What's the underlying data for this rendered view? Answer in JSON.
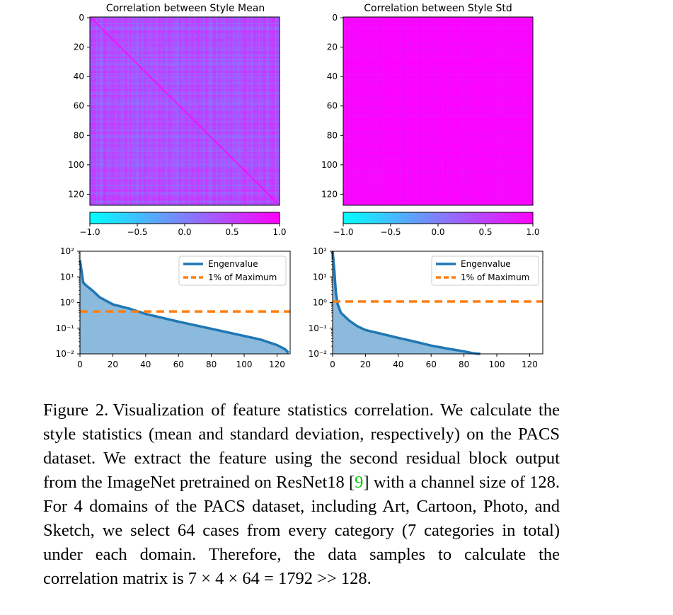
{
  "chart_data": [
    {
      "type": "heatmap",
      "title": "Correlation between Style Mean",
      "matrix_size": 128,
      "value_range": [
        -1.0,
        1.0
      ],
      "colormap": "cool",
      "yticks": [
        0,
        20,
        40,
        60,
        80,
        100,
        120
      ],
      "colorbar_ticks": [
        "−1.0",
        "−0.5",
        "0.0",
        "0.5",
        "1.0"
      ],
      "diagonal": 1.0,
      "off_diagonal_typical": 0.35,
      "off_diagonal_spread": 0.3
    },
    {
      "type": "heatmap",
      "title": "Correlation between Style Std",
      "matrix_size": 128,
      "value_range": [
        -1.0,
        1.0
      ],
      "colormap": "cool",
      "yticks": [
        0,
        20,
        40,
        60,
        80,
        100,
        120
      ],
      "colorbar_ticks": [
        "−1.0",
        "−0.5",
        "0.0",
        "0.5",
        "1.0"
      ],
      "diagonal": 1.0,
      "off_diagonal_typical": 0.95,
      "off_diagonal_spread": 0.08
    },
    {
      "type": "area",
      "y_scale": "log",
      "xlim": [
        0,
        128
      ],
      "ylim": [
        0.01,
        100
      ],
      "xticks": [
        0,
        20,
        40,
        60,
        80,
        100,
        120
      ],
      "yticks": [
        "10²",
        "10¹",
        "10⁰",
        "10⁻¹",
        "10⁻²"
      ],
      "legend_position": "upper-right",
      "series": [
        {
          "name": "Engenvalue",
          "x": [
            0,
            2,
            4,
            8,
            12,
            20,
            30,
            40,
            60,
            80,
            100,
            110,
            120,
            125,
            127
          ],
          "y": [
            45,
            6,
            4.5,
            2.8,
            1.6,
            0.85,
            0.58,
            0.36,
            0.18,
            0.095,
            0.05,
            0.036,
            0.022,
            0.015,
            0.011
          ]
        },
        {
          "name": "1% of Maximum",
          "y_constant": 0.45
        }
      ]
    },
    {
      "type": "area",
      "y_scale": "log",
      "xlim": [
        0,
        128
      ],
      "ylim": [
        0.01,
        100
      ],
      "xticks": [
        0,
        20,
        40,
        60,
        80,
        100,
        120
      ],
      "yticks": [
        "10²",
        "10¹",
        "10⁰",
        "10⁻¹",
        "10⁻²"
      ],
      "legend_position": "upper-right",
      "series": [
        {
          "name": "Engenvalue",
          "x": [
            0,
            1,
            2,
            3,
            5,
            10,
            15,
            20,
            30,
            40,
            50,
            60,
            70,
            80,
            85,
            88,
            90
          ],
          "y": [
            110,
            20,
            2.5,
            0.9,
            0.4,
            0.2,
            0.12,
            0.085,
            0.06,
            0.042,
            0.03,
            0.021,
            0.016,
            0.0125,
            0.0108,
            0.0102,
            0.01
          ]
        },
        {
          "name": "1% of Maximum",
          "y_constant": 1.1
        }
      ]
    }
  ],
  "caption": {
    "label": "Figure 2.",
    "text_before_ref": "Visualization of feature statistics correlation. We calculate the style statistics (mean and standard deviation, respectively) on the PACS dataset. We extract the feature using the second residual block output from the ImageNet pretrained on ResNet18 [",
    "ref": "9",
    "text_after_ref": "] with a channel size of 128. For 4 domains of the PACS dataset, including Art, Cartoon, Photo, and Sketch, we select 64 cases from every category (7 categories in total) under each domain. Therefore, the data samples to calculate the correlation matrix is 7 × 4 × 64 = 1792 >> 128."
  }
}
